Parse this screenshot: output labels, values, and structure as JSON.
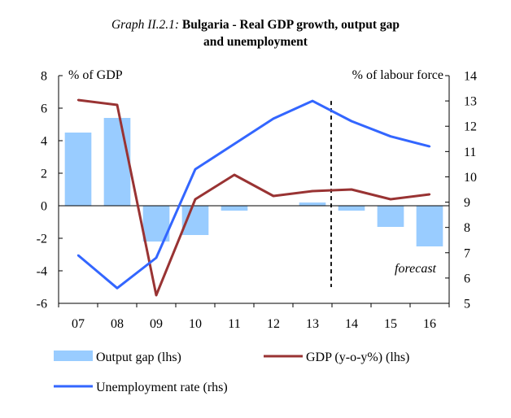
{
  "chart_data": {
    "type": "bar+line",
    "title_prefix": "Graph II.2.1:",
    "title_line1": "Bulgaria - Real GDP growth, output gap",
    "title_line2": "and unemployment",
    "ylabel_left": "% of GDP",
    "ylabel_right": "% of labour force",
    "categories": [
      "07",
      "08",
      "09",
      "10",
      "11",
      "12",
      "13",
      "14",
      "15",
      "16"
    ],
    "ylim_left": [
      -6,
      8
    ],
    "yticks_left": [
      -6,
      -4,
      -2,
      0,
      2,
      4,
      6,
      8
    ],
    "ylim_right": [
      5,
      14
    ],
    "yticks_right": [
      5,
      6,
      7,
      8,
      9,
      10,
      11,
      12,
      13,
      14
    ],
    "forecast_label": "forecast",
    "forecast_from_category": "14",
    "grid": false,
    "legend_position": "bottom",
    "series": [
      {
        "name": "Output gap (lhs)",
        "type": "bar",
        "axis": "left",
        "color": "#99ccff",
        "values": [
          4.5,
          5.4,
          -2.2,
          -1.8,
          -0.3,
          0.0,
          0.2,
          -0.3,
          -1.3,
          -2.5
        ]
      },
      {
        "name": "GDP (y-o-y%) (lhs)",
        "type": "line",
        "axis": "left",
        "color": "#993333",
        "values": [
          6.5,
          6.2,
          -5.5,
          0.4,
          1.9,
          0.6,
          0.9,
          1.0,
          0.4,
          0.7
        ]
      },
      {
        "name": "Unemployment rate (rhs)",
        "type": "line",
        "axis": "right",
        "color": "#3366ff",
        "values": [
          6.9,
          5.6,
          6.8,
          10.3,
          11.3,
          12.3,
          13.0,
          12.2,
          11.6,
          11.2
        ]
      }
    ]
  }
}
